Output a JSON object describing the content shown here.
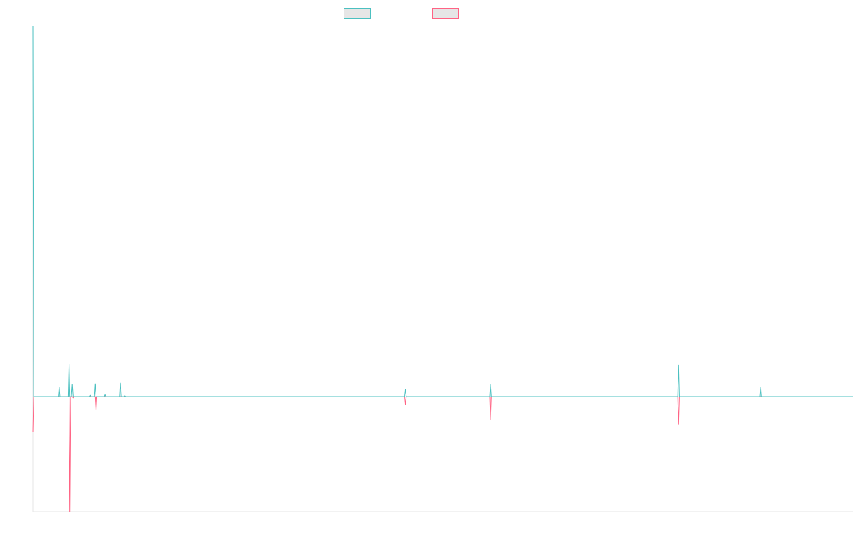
{
  "chart_data": {
    "type": "line",
    "title": "",
    "xlabel": "",
    "ylabel": "",
    "grid": false,
    "legend_position": "top-center",
    "x_range": [
      0,
      1000
    ],
    "y_range": [
      -100,
      100
    ],
    "series": [
      {
        "color": "#4bc0c0",
        "points": [
          [
            0,
            100
          ],
          [
            1,
            0
          ],
          [
            31,
            0
          ],
          [
            32,
            2.7
          ],
          [
            33,
            0
          ],
          [
            43,
            0
          ],
          [
            44,
            8.7
          ],
          [
            45,
            0
          ],
          [
            47,
            0
          ],
          [
            48,
            3.3
          ],
          [
            49,
            0
          ],
          [
            69,
            0
          ],
          [
            70,
            0.3
          ],
          [
            71,
            0
          ],
          [
            75,
            0
          ],
          [
            76,
            3.5
          ],
          [
            77,
            0
          ],
          [
            87,
            0
          ],
          [
            88,
            0.5
          ],
          [
            89,
            0
          ],
          [
            106,
            0
          ],
          [
            107,
            3.7
          ],
          [
            108,
            0
          ],
          [
            111,
            0
          ],
          [
            112,
            0.2
          ],
          [
            113,
            0
          ],
          [
            453,
            0
          ],
          [
            454,
            2
          ],
          [
            455,
            0
          ],
          [
            557,
            0
          ],
          [
            558,
            3.4
          ],
          [
            559,
            0
          ],
          [
            786,
            0
          ],
          [
            787,
            8.5
          ],
          [
            788,
            0
          ],
          [
            886,
            0
          ],
          [
            887,
            2.7
          ],
          [
            888,
            0
          ],
          [
            1000,
            0
          ]
        ]
      },
      {
        "color": "#ff6384",
        "points": [
          [
            0,
            -31
          ],
          [
            1,
            0
          ],
          [
            44,
            0
          ],
          [
            45,
            -100
          ],
          [
            46,
            0
          ],
          [
            48,
            0
          ],
          [
            49,
            -1
          ],
          [
            50,
            0
          ],
          [
            76,
            0
          ],
          [
            77,
            -12
          ],
          [
            78,
            0
          ],
          [
            453,
            0
          ],
          [
            454,
            -7
          ],
          [
            455,
            0
          ],
          [
            557,
            0
          ],
          [
            558,
            -20
          ],
          [
            559,
            0
          ],
          [
            786,
            0
          ],
          [
            787,
            -24
          ],
          [
            788,
            0
          ],
          [
            1000,
            0
          ]
        ]
      }
    ]
  }
}
